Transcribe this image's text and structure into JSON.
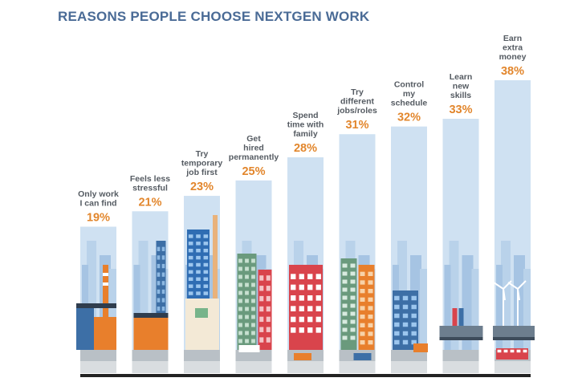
{
  "title": "REASONS PEOPLE CHOOSE NEXTGEN WORK",
  "colors": {
    "title": "#4a6b96",
    "bar": "#cfe1f2",
    "value_label": "#e2862c",
    "category_label": "#555b62",
    "baseline": "#222222"
  },
  "chart_data": {
    "type": "bar",
    "title": "REASONS PEOPLE CHOOSE NEXTGEN WORK",
    "categories": [
      "Only work I can find",
      "Feels less stressful",
      "Try temporary job first",
      "Get hired permanently",
      "Spend time with family",
      "Try different jobs/roles",
      "Control my schedule",
      "Learn new skills",
      "Earn extra money"
    ],
    "label_lines": [
      [
        "Only work",
        "I can find"
      ],
      [
        "Feels less",
        "stressful"
      ],
      [
        "Try",
        "temporary",
        "job first"
      ],
      [
        "Get",
        "hired",
        "permanently"
      ],
      [
        "Spend",
        "time with",
        "family"
      ],
      [
        "Try",
        "different",
        "jobs/roles"
      ],
      [
        "Control",
        "my",
        "schedule"
      ],
      [
        "Learn",
        "new",
        "skills"
      ],
      [
        "Earn",
        "extra",
        "money"
      ]
    ],
    "values": [
      19,
      21,
      23,
      25,
      28,
      31,
      32,
      33,
      38
    ],
    "value_labels": [
      "19%",
      "21%",
      "23%",
      "25%",
      "28%",
      "31%",
      "32%",
      "33%",
      "38%"
    ],
    "xlabel": "",
    "ylabel": "",
    "ylim": [
      0,
      38
    ],
    "grid": false,
    "legend": "none"
  }
}
